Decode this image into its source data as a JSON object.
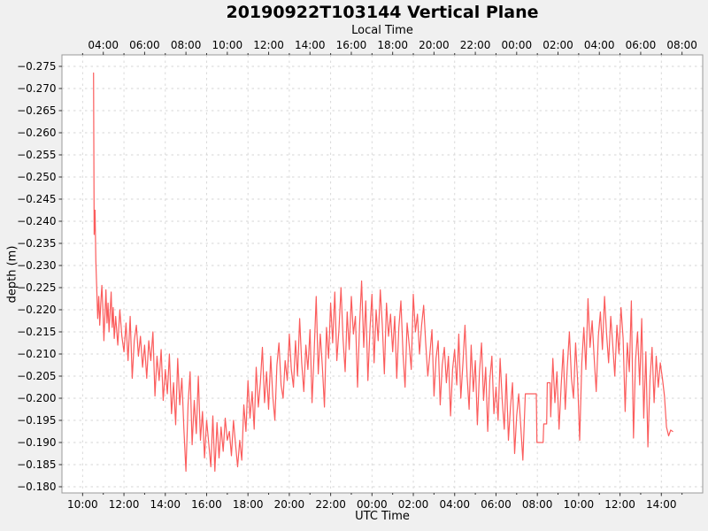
{
  "figure": {
    "background_color": "#f0f0f0",
    "plot_background_color": "#ffffff",
    "spine_color": "#9a9a9a",
    "grid_color": "#d6d6d6"
  },
  "chart_data": {
    "type": "line",
    "title": "20190922T103144 Vertical Plane",
    "series_color": "#fb5c5c",
    "legend": "none",
    "grid": {
      "show": true,
      "style": "dashed"
    },
    "x_range_hours_utc": [
      9,
      40
    ],
    "top_axis": {
      "label": "Local Time",
      "utc_offset_hours": -7,
      "tick_hours_utc": [
        11,
        13,
        15,
        17,
        19,
        21,
        23,
        25,
        27,
        29,
        31,
        33,
        35,
        37,
        39
      ],
      "tick_labels": [
        "04:00",
        "06:00",
        "08:00",
        "10:00",
        "12:00",
        "14:00",
        "16:00",
        "18:00",
        "20:00",
        "22:00",
        "00:00",
        "02:00",
        "04:00",
        "06:00",
        "08:00"
      ]
    },
    "bottom_axis": {
      "label": "UTC Time",
      "tick_hours_utc": [
        10,
        12,
        14,
        16,
        18,
        20,
        22,
        24,
        26,
        28,
        30,
        32,
        34,
        36,
        38
      ],
      "tick_labels": [
        "10:00",
        "12:00",
        "14:00",
        "16:00",
        "18:00",
        "20:00",
        "22:00",
        "00:00",
        "02:00",
        "04:00",
        "06:00",
        "08:00",
        "10:00",
        "12:00",
        "14:00"
      ]
    },
    "y_axis": {
      "label": "depth (m)",
      "inverted": true,
      "range_top": -0.2776,
      "range_bottom": -0.1786,
      "tick_values": [
        -0.275,
        -0.27,
        -0.265,
        -0.26,
        -0.255,
        -0.25,
        -0.245,
        -0.24,
        -0.235,
        -0.23,
        -0.225,
        -0.22,
        -0.215,
        -0.21,
        -0.205,
        -0.2,
        -0.195,
        -0.19,
        -0.185,
        -0.18
      ],
      "tick_labels": [
        "−0.275",
        "−0.270",
        "−0.265",
        "−0.260",
        "−0.255",
        "−0.250",
        "−0.245",
        "−0.240",
        "−0.235",
        "−0.230",
        "−0.225",
        "−0.220",
        "−0.215",
        "−0.210",
        "−0.205",
        "−0.200",
        "−0.195",
        "−0.190",
        "−0.185",
        "−0.180"
      ]
    },
    "points": [
      [
        10.53,
        -0.2735
      ],
      [
        10.56,
        -0.237
      ],
      [
        10.6,
        -0.2425
      ],
      [
        10.64,
        -0.231
      ],
      [
        10.68,
        -0.2255
      ],
      [
        10.73,
        -0.218
      ],
      [
        10.78,
        -0.223
      ],
      [
        10.83,
        -0.2165
      ],
      [
        10.88,
        -0.2215
      ],
      [
        10.93,
        -0.2255
      ],
      [
        10.98,
        -0.2205
      ],
      [
        11.03,
        -0.213
      ],
      [
        11.08,
        -0.219
      ],
      [
        11.13,
        -0.2245
      ],
      [
        11.18,
        -0.217
      ],
      [
        11.23,
        -0.2215
      ],
      [
        11.28,
        -0.215
      ],
      [
        11.33,
        -0.2195
      ],
      [
        11.38,
        -0.224
      ],
      [
        11.43,
        -0.216
      ],
      [
        11.48,
        -0.2205
      ],
      [
        11.53,
        -0.2135
      ],
      [
        11.6,
        -0.2185
      ],
      [
        11.7,
        -0.212
      ],
      [
        11.8,
        -0.22
      ],
      [
        11.9,
        -0.214
      ],
      [
        12.0,
        -0.2105
      ],
      [
        12.1,
        -0.217
      ],
      [
        12.2,
        -0.2085
      ],
      [
        12.3,
        -0.2185
      ],
      [
        12.4,
        -0.2045
      ],
      [
        12.5,
        -0.213
      ],
      [
        12.6,
        -0.2165
      ],
      [
        12.7,
        -0.2095
      ],
      [
        12.8,
        -0.214
      ],
      [
        12.9,
        -0.207
      ],
      [
        13.0,
        -0.212
      ],
      [
        13.1,
        -0.2045
      ],
      [
        13.2,
        -0.213
      ],
      [
        13.3,
        -0.2085
      ],
      [
        13.4,
        -0.215
      ],
      [
        13.5,
        -0.2005
      ],
      [
        13.6,
        -0.2095
      ],
      [
        13.7,
        -0.204
      ],
      [
        13.8,
        -0.211
      ],
      [
        13.9,
        -0.1995
      ],
      [
        14.0,
        -0.2065
      ],
      [
        14.1,
        -0.201
      ],
      [
        14.2,
        -0.21
      ],
      [
        14.3,
        -0.1965
      ],
      [
        14.4,
        -0.2035
      ],
      [
        14.5,
        -0.194
      ],
      [
        14.6,
        -0.209
      ],
      [
        14.7,
        -0.1985
      ],
      [
        14.8,
        -0.2045
      ],
      [
        14.9,
        -0.193
      ],
      [
        15.0,
        -0.1835
      ],
      [
        15.1,
        -0.1985
      ],
      [
        15.2,
        -0.206
      ],
      [
        15.3,
        -0.1895
      ],
      [
        15.4,
        -0.1995
      ],
      [
        15.5,
        -0.192
      ],
      [
        15.6,
        -0.205
      ],
      [
        15.7,
        -0.1905
      ],
      [
        15.8,
        -0.197
      ],
      [
        15.9,
        -0.1865
      ],
      [
        16.0,
        -0.195
      ],
      [
        16.1,
        -0.19
      ],
      [
        16.2,
        -0.1845
      ],
      [
        16.3,
        -0.196
      ],
      [
        16.4,
        -0.1835
      ],
      [
        16.5,
        -0.1945
      ],
      [
        16.6,
        -0.1865
      ],
      [
        16.7,
        -0.1935
      ],
      [
        16.8,
        -0.188
      ],
      [
        16.9,
        -0.1955
      ],
      [
        17.0,
        -0.1905
      ],
      [
        17.1,
        -0.1925
      ],
      [
        17.2,
        -0.187
      ],
      [
        17.3,
        -0.195
      ],
      [
        17.4,
        -0.1895
      ],
      [
        17.5,
        -0.1845
      ],
      [
        17.6,
        -0.1905
      ],
      [
        17.7,
        -0.186
      ],
      [
        17.8,
        -0.1985
      ],
      [
        17.9,
        -0.1925
      ],
      [
        18.0,
        -0.204
      ],
      [
        18.1,
        -0.1955
      ],
      [
        18.2,
        -0.2015
      ],
      [
        18.3,
        -0.193
      ],
      [
        18.4,
        -0.207
      ],
      [
        18.5,
        -0.198
      ],
      [
        18.6,
        -0.2035
      ],
      [
        18.7,
        -0.2115
      ],
      [
        18.8,
        -0.199
      ],
      [
        18.9,
        -0.206
      ],
      [
        19.0,
        -0.1975
      ],
      [
        19.1,
        -0.2095
      ],
      [
        19.2,
        -0.2005
      ],
      [
        19.3,
        -0.195
      ],
      [
        19.4,
        -0.2075
      ],
      [
        19.5,
        -0.2125
      ],
      [
        19.6,
        -0.203
      ],
      [
        19.7,
        -0.2
      ],
      [
        19.8,
        -0.2085
      ],
      [
        19.9,
        -0.204
      ],
      [
        20.0,
        -0.2145
      ],
      [
        20.1,
        -0.2065
      ],
      [
        20.2,
        -0.2025
      ],
      [
        20.3,
        -0.213
      ],
      [
        20.4,
        -0.205
      ],
      [
        20.5,
        -0.218
      ],
      [
        20.6,
        -0.208
      ],
      [
        20.7,
        -0.2015
      ],
      [
        20.8,
        -0.212
      ],
      [
        20.9,
        -0.2065
      ],
      [
        21.0,
        -0.2155
      ],
      [
        21.1,
        -0.199
      ],
      [
        21.2,
        -0.21
      ],
      [
        21.3,
        -0.223
      ],
      [
        21.4,
        -0.2055
      ],
      [
        21.5,
        -0.2145
      ],
      [
        21.6,
        -0.207
      ],
      [
        21.7,
        -0.198
      ],
      [
        21.8,
        -0.216
      ],
      [
        21.9,
        -0.209
      ],
      [
        22.0,
        -0.2215
      ],
      [
        22.1,
        -0.2125
      ],
      [
        22.2,
        -0.224
      ],
      [
        22.3,
        -0.2085
      ],
      [
        22.4,
        -0.2155
      ],
      [
        22.5,
        -0.225
      ],
      [
        22.6,
        -0.2135
      ],
      [
        22.7,
        -0.206
      ],
      [
        22.8,
        -0.2195
      ],
      [
        22.9,
        -0.211
      ],
      [
        23.0,
        -0.223
      ],
      [
        23.1,
        -0.2145
      ],
      [
        23.2,
        -0.2185
      ],
      [
        23.3,
        -0.2025
      ],
      [
        23.4,
        -0.2165
      ],
      [
        23.5,
        -0.2265
      ],
      [
        23.6,
        -0.2115
      ],
      [
        23.7,
        -0.222
      ],
      [
        23.8,
        -0.204
      ],
      [
        23.9,
        -0.2155
      ],
      [
        24.0,
        -0.2235
      ],
      [
        24.1,
        -0.208
      ],
      [
        24.2,
        -0.22
      ],
      [
        24.3,
        -0.213
      ],
      [
        24.4,
        -0.2245
      ],
      [
        24.5,
        -0.2165
      ],
      [
        24.6,
        -0.2055
      ],
      [
        24.7,
        -0.2215
      ],
      [
        24.8,
        -0.214
      ],
      [
        24.9,
        -0.219
      ],
      [
        25.0,
        -0.2105
      ],
      [
        25.1,
        -0.2185
      ],
      [
        25.2,
        -0.2045
      ],
      [
        25.3,
        -0.216
      ],
      [
        25.4,
        -0.222
      ],
      [
        25.5,
        -0.21
      ],
      [
        25.6,
        -0.2025
      ],
      [
        25.7,
        -0.217
      ],
      [
        25.8,
        -0.212
      ],
      [
        25.9,
        -0.2065
      ],
      [
        26.0,
        -0.2235
      ],
      [
        26.1,
        -0.215
      ],
      [
        26.2,
        -0.219
      ],
      [
        26.3,
        -0.21
      ],
      [
        26.4,
        -0.2165
      ],
      [
        26.5,
        -0.221
      ],
      [
        26.6,
        -0.2125
      ],
      [
        26.7,
        -0.205
      ],
      [
        26.8,
        -0.21
      ],
      [
        26.9,
        -0.2155
      ],
      [
        27.0,
        -0.2005
      ],
      [
        27.1,
        -0.209
      ],
      [
        27.2,
        -0.213
      ],
      [
        27.3,
        -0.1985
      ],
      [
        27.4,
        -0.2075
      ],
      [
        27.5,
        -0.2115
      ],
      [
        27.6,
        -0.2035
      ],
      [
        27.7,
        -0.2095
      ],
      [
        27.8,
        -0.196
      ],
      [
        27.9,
        -0.2065
      ],
      [
        28.0,
        -0.211
      ],
      [
        28.1,
        -0.203
      ],
      [
        28.2,
        -0.2145
      ],
      [
        28.3,
        -0.2
      ],
      [
        28.4,
        -0.208
      ],
      [
        28.5,
        -0.2165
      ],
      [
        28.6,
        -0.205
      ],
      [
        28.7,
        -0.1975
      ],
      [
        28.8,
        -0.212
      ],
      [
        28.9,
        -0.2015
      ],
      [
        29.0,
        -0.2085
      ],
      [
        29.1,
        -0.194
      ],
      [
        29.2,
        -0.206
      ],
      [
        29.3,
        -0.2125
      ],
      [
        29.4,
        -0.1995
      ],
      [
        29.5,
        -0.207
      ],
      [
        29.6,
        -0.1925
      ],
      [
        29.7,
        -0.204
      ],
      [
        29.8,
        -0.2095
      ],
      [
        29.9,
        -0.1965
      ],
      [
        30.0,
        -0.2025
      ],
      [
        30.1,
        -0.195
      ],
      [
        30.2,
        -0.209
      ],
      [
        30.3,
        -0.1995
      ],
      [
        30.4,
        -0.193
      ],
      [
        30.5,
        -0.2055
      ],
      [
        30.6,
        -0.1905
      ],
      [
        30.7,
        -0.198
      ],
      [
        30.8,
        -0.2035
      ],
      [
        30.9,
        -0.1875
      ],
      [
        31.0,
        -0.196
      ],
      [
        31.1,
        -0.201
      ],
      [
        31.2,
        -0.1935
      ],
      [
        31.3,
        -0.186
      ],
      [
        31.42,
        -0.201
      ],
      [
        31.95,
        -0.201
      ],
      [
        31.98,
        -0.19
      ],
      [
        32.28,
        -0.19
      ],
      [
        32.31,
        -0.1942
      ],
      [
        32.45,
        -0.1942
      ],
      [
        32.48,
        -0.2035
      ],
      [
        32.62,
        -0.2035
      ],
      [
        32.65,
        -0.1958
      ],
      [
        32.75,
        -0.209
      ],
      [
        32.85,
        -0.199
      ],
      [
        32.95,
        -0.206
      ],
      [
        33.05,
        -0.193
      ],
      [
        33.15,
        -0.2025
      ],
      [
        33.25,
        -0.211
      ],
      [
        33.35,
        -0.1975
      ],
      [
        33.45,
        -0.207
      ],
      [
        33.55,
        -0.215
      ],
      [
        33.65,
        -0.2045
      ],
      [
        33.75,
        -0.2
      ],
      [
        33.85,
        -0.2125
      ],
      [
        33.95,
        -0.204
      ],
      [
        34.05,
        -0.1905
      ],
      [
        34.15,
        -0.208
      ],
      [
        34.25,
        -0.216
      ],
      [
        34.35,
        -0.2065
      ],
      [
        34.45,
        -0.2225
      ],
      [
        34.55,
        -0.2115
      ],
      [
        34.65,
        -0.2175
      ],
      [
        34.75,
        -0.209
      ],
      [
        34.85,
        -0.2015
      ],
      [
        34.95,
        -0.214
      ],
      [
        35.05,
        -0.2195
      ],
      [
        35.15,
        -0.211
      ],
      [
        35.25,
        -0.223
      ],
      [
        35.35,
        -0.2145
      ],
      [
        35.45,
        -0.208
      ],
      [
        35.55,
        -0.2185
      ],
      [
        35.65,
        -0.212
      ],
      [
        35.75,
        -0.205
      ],
      [
        35.85,
        -0.2165
      ],
      [
        35.95,
        -0.21
      ],
      [
        36.05,
        -0.2205
      ],
      [
        36.15,
        -0.2135
      ],
      [
        36.25,
        -0.197
      ],
      [
        36.35,
        -0.2125
      ],
      [
        36.45,
        -0.206
      ],
      [
        36.55,
        -0.222
      ],
      [
        36.65,
        -0.191
      ],
      [
        36.75,
        -0.2085
      ],
      [
        36.85,
        -0.215
      ],
      [
        36.95,
        -0.203
      ],
      [
        37.05,
        -0.218
      ],
      [
        37.15,
        -0.1955
      ],
      [
        37.25,
        -0.2105
      ],
      [
        37.35,
        -0.189
      ],
      [
        37.45,
        -0.204
      ],
      [
        37.55,
        -0.2115
      ],
      [
        37.65,
        -0.199
      ],
      [
        37.75,
        -0.2095
      ],
      [
        37.85,
        -0.2025
      ],
      [
        37.95,
        -0.208
      ],
      [
        38.05,
        -0.2045
      ],
      [
        38.15,
        -0.2005
      ],
      [
        38.25,
        -0.1935
      ],
      [
        38.35,
        -0.1915
      ],
      [
        38.45,
        -0.1928
      ],
      [
        38.55,
        -0.1925
      ]
    ]
  }
}
